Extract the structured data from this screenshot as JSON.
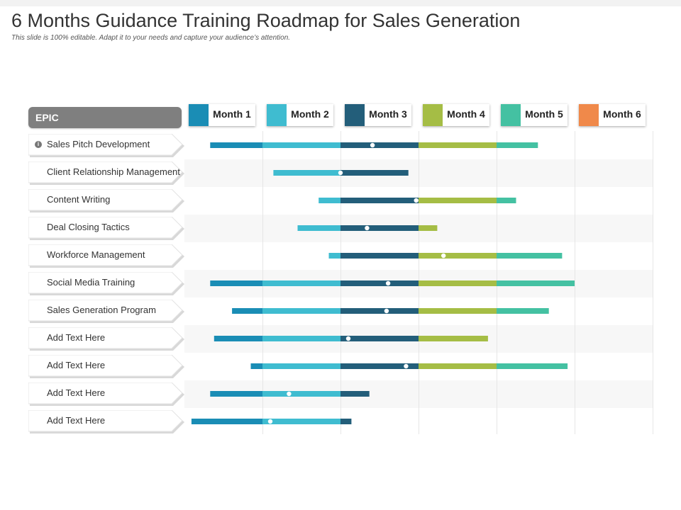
{
  "title": "6 Months Guidance Training Roadmap for Sales Generation",
  "subtitle": "This slide is 100% editable. Adapt it to your needs and capture your audience’s attention.",
  "epic_header": "EPIC",
  "months": [
    {
      "label": "Month 1",
      "color": "#1a8db5"
    },
    {
      "label": "Month 2",
      "color": "#3fbcd0"
    },
    {
      "label": "Month 3",
      "color": "#235e7a"
    },
    {
      "label": "Month 4",
      "color": "#a5bd45"
    },
    {
      "label": "Month 5",
      "color": "#44c1a2"
    },
    {
      "label": "Month 6",
      "color": "#f0894a"
    }
  ],
  "epics": [
    {
      "label": "Sales Pitch Development",
      "icon": "info-icon",
      "start": 0.33,
      "end": 4.53,
      "marker": 2.41
    },
    {
      "label": "Client Relationship Management",
      "start": 1.14,
      "end": 2.87,
      "marker": 2.0
    },
    {
      "label": "Content Writing",
      "start": 1.72,
      "end": 4.25,
      "marker": 2.97
    },
    {
      "label": "Deal Closing Tactics",
      "start": 1.45,
      "end": 3.24,
      "marker": 2.34
    },
    {
      "label": "Workforce Management",
      "start": 1.85,
      "end": 4.84,
      "marker": 3.32
    },
    {
      "label": "Social Media Training",
      "start": 0.33,
      "end": 5.0,
      "marker": 2.61
    },
    {
      "label": "Sales Generation Program",
      "start": 0.61,
      "end": 4.67,
      "marker": 2.59
    },
    {
      "label": "Add Text Here",
      "start": 0.38,
      "end": 3.89,
      "marker": 2.1
    },
    {
      "label": "Add Text Here",
      "start": 0.85,
      "end": 4.91,
      "marker": 2.84
    },
    {
      "label": "Add Text Here",
      "start": 0.33,
      "end": 2.37,
      "marker": 1.34
    },
    {
      "label": "Add Text Here",
      "start": 0.09,
      "end": 2.14,
      "marker": 1.1
    }
  ]
}
